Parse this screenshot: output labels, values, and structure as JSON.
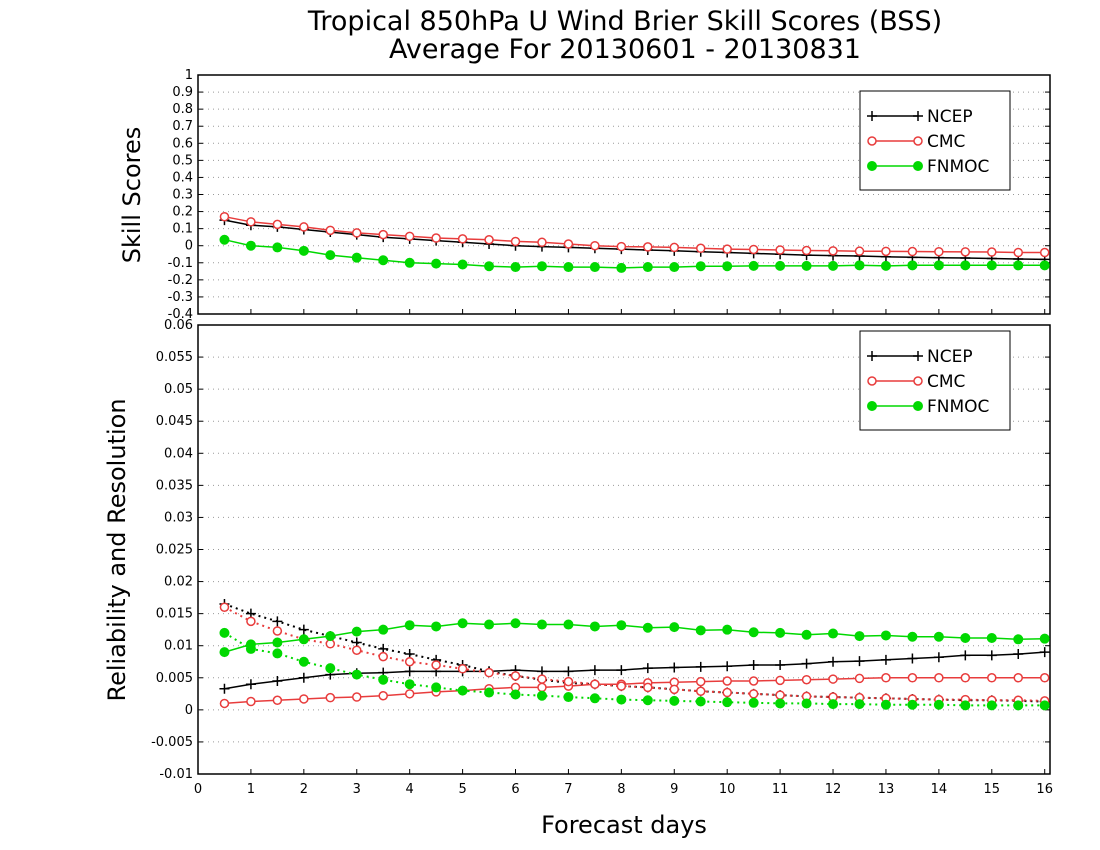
{
  "chart_data": [
    {
      "type": "line",
      "title": "Tropical 850hPa U Wind Brier Skill Scores (BSS)",
      "subtitle": "Average For 20130601 - 20130831",
      "ylabel": "Skill Scores",
      "xlim": [
        0,
        16.1
      ],
      "ylim": [
        -0.4,
        1
      ],
      "yticks": [
        "1",
        "0.9",
        "0.8",
        "0.7",
        "0.6",
        "0.5",
        "0.4",
        "0.3",
        "0.2",
        "0.1",
        "0",
        "-0.1",
        "-0.2",
        "-0.3",
        "-0.4"
      ],
      "grid": true,
      "legend": "top-right",
      "x": [
        0.5,
        1,
        1.5,
        2,
        2.5,
        3,
        3.5,
        4,
        4.5,
        5,
        5.5,
        6,
        6.5,
        7,
        7.5,
        8,
        8.5,
        9,
        9.5,
        10,
        10.5,
        11,
        11.5,
        12,
        12.5,
        13,
        13.5,
        14,
        14.5,
        15,
        15.5,
        16
      ],
      "series": [
        {
          "name": "NCEP",
          "color": "#000000",
          "marker": "plus",
          "values": [
            0.15,
            0.12,
            0.11,
            0.095,
            0.08,
            0.065,
            0.05,
            0.04,
            0.03,
            0.02,
            0.01,
            0.0,
            -0.005,
            -0.01,
            -0.015,
            -0.02,
            -0.025,
            -0.03,
            -0.035,
            -0.04,
            -0.045,
            -0.05,
            -0.055,
            -0.058,
            -0.06,
            -0.065,
            -0.068,
            -0.07,
            -0.072,
            -0.075,
            -0.078,
            -0.08
          ]
        },
        {
          "name": "CMC",
          "color": "#e83c3c",
          "marker": "open-circle",
          "values": [
            0.17,
            0.14,
            0.125,
            0.11,
            0.09,
            0.075,
            0.065,
            0.055,
            0.045,
            0.04,
            0.035,
            0.025,
            0.02,
            0.01,
            0.0,
            -0.005,
            -0.007,
            -0.01,
            -0.015,
            -0.02,
            -0.022,
            -0.025,
            -0.028,
            -0.03,
            -0.032,
            -0.033,
            -0.034,
            -0.035,
            -0.036,
            -0.037,
            -0.04,
            -0.04
          ]
        },
        {
          "name": "FNMOC",
          "color": "#00d800",
          "marker": "filled-circle",
          "values": [
            0.035,
            0.0,
            -0.01,
            -0.03,
            -0.055,
            -0.07,
            -0.085,
            -0.1,
            -0.105,
            -0.11,
            -0.12,
            -0.125,
            -0.12,
            -0.125,
            -0.125,
            -0.13,
            -0.125,
            -0.125,
            -0.12,
            -0.12,
            -0.118,
            -0.118,
            -0.118,
            -0.118,
            -0.115,
            -0.118,
            -0.115,
            -0.115,
            -0.115,
            -0.115,
            -0.115,
            -0.115
          ]
        }
      ]
    },
    {
      "type": "line",
      "ylabel": "Reliability and Resolution",
      "xlabel": "Forecast days",
      "xlim": [
        0,
        16.1
      ],
      "xticks": [
        "0",
        "1",
        "2",
        "3",
        "4",
        "5",
        "6",
        "7",
        "8",
        "9",
        "10",
        "11",
        "12",
        "13",
        "14",
        "15",
        "16"
      ],
      "ylim": [
        -0.01,
        0.06
      ],
      "yticks": [
        "0.06",
        "0.055",
        "0.05",
        "0.045",
        "0.04",
        "0.035",
        "0.03",
        "0.025",
        "0.02",
        "0.015",
        "0.01",
        "0.005",
        "0",
        "-0.005",
        "-0.01"
      ],
      "grid": true,
      "legend": "top-right",
      "x": [
        0.5,
        1,
        1.5,
        2,
        2.5,
        3,
        3.5,
        4,
        4.5,
        5,
        5.5,
        6,
        6.5,
        7,
        7.5,
        8,
        8.5,
        9,
        9.5,
        10,
        10.5,
        11,
        11.5,
        12,
        12.5,
        13,
        13.5,
        14,
        14.5,
        15,
        15.5,
        16
      ],
      "series": [
        {
          "name": "NCEP",
          "color": "#000000",
          "marker": "plus",
          "style": "solid",
          "values": [
            0.0033,
            0.004,
            0.0045,
            0.005,
            0.0055,
            0.0057,
            0.0058,
            0.006,
            0.006,
            0.006,
            0.006,
            0.0062,
            0.006,
            0.006,
            0.0062,
            0.0062,
            0.0065,
            0.0066,
            0.0067,
            0.0068,
            0.007,
            0.007,
            0.0072,
            0.0075,
            0.0076,
            0.0078,
            0.008,
            0.0082,
            0.0085,
            0.0085,
            0.0087,
            0.009
          ]
        },
        {
          "name": "NCEP",
          "color": "#000000",
          "marker": "plus",
          "style": "dotted",
          "values": [
            0.0165,
            0.015,
            0.0138,
            0.0125,
            0.0115,
            0.0105,
            0.0095,
            0.0087,
            0.0078,
            0.007,
            0.006,
            0.0053,
            0.0047,
            0.0042,
            0.004,
            0.0037,
            0.0035,
            0.0032,
            0.0029,
            0.0027,
            0.0025,
            0.0023,
            0.0021,
            0.002,
            0.0019,
            0.0018,
            0.0017,
            0.0016,
            0.0015,
            0.0015,
            0.0014,
            0.0013
          ]
        },
        {
          "name": "CMC",
          "color": "#e83c3c",
          "marker": "open-circle",
          "style": "solid",
          "values": [
            0.001,
            0.0013,
            0.0015,
            0.0017,
            0.0019,
            0.002,
            0.0022,
            0.0025,
            0.0028,
            0.003,
            0.0033,
            0.0035,
            0.0035,
            0.0037,
            0.004,
            0.004,
            0.0042,
            0.0043,
            0.0044,
            0.0045,
            0.0045,
            0.0046,
            0.0047,
            0.0048,
            0.0049,
            0.005,
            0.005,
            0.005,
            0.005,
            0.005,
            0.005,
            0.005
          ]
        },
        {
          "name": "CMC",
          "color": "#e83c3c",
          "marker": "open-circle",
          "style": "dotted",
          "values": [
            0.016,
            0.0138,
            0.0123,
            0.011,
            0.0103,
            0.0093,
            0.0083,
            0.0075,
            0.007,
            0.0064,
            0.0058,
            0.0053,
            0.0048,
            0.0044,
            0.004,
            0.0037,
            0.0035,
            0.0032,
            0.0029,
            0.0027,
            0.0025,
            0.0023,
            0.0021,
            0.002,
            0.0019,
            0.0018,
            0.0017,
            0.0016,
            0.0016,
            0.0015,
            0.0015,
            0.0014
          ]
        },
        {
          "name": "FNMOC",
          "color": "#00d800",
          "marker": "filled-circle",
          "style": "solid",
          "values": [
            0.009,
            0.0102,
            0.0105,
            0.011,
            0.0115,
            0.0122,
            0.0125,
            0.0132,
            0.013,
            0.0135,
            0.0133,
            0.0135,
            0.0133,
            0.0133,
            0.013,
            0.0132,
            0.0128,
            0.0129,
            0.0124,
            0.0125,
            0.0121,
            0.012,
            0.0117,
            0.0119,
            0.0115,
            0.0116,
            0.0114,
            0.0114,
            0.0112,
            0.0112,
            0.011,
            0.0111
          ]
        },
        {
          "name": "FNMOC",
          "color": "#00d800",
          "marker": "filled-circle",
          "style": "dotted",
          "values": [
            0.012,
            0.0095,
            0.0088,
            0.0075,
            0.0065,
            0.0055,
            0.0047,
            0.004,
            0.0035,
            0.003,
            0.0027,
            0.0024,
            0.0022,
            0.002,
            0.0018,
            0.0016,
            0.0015,
            0.0014,
            0.0013,
            0.0012,
            0.0011,
            0.001,
            0.001,
            0.0009,
            0.0009,
            0.0008,
            0.0008,
            0.0008,
            0.0007,
            0.0007,
            0.0007,
            0.0007
          ]
        }
      ]
    }
  ]
}
